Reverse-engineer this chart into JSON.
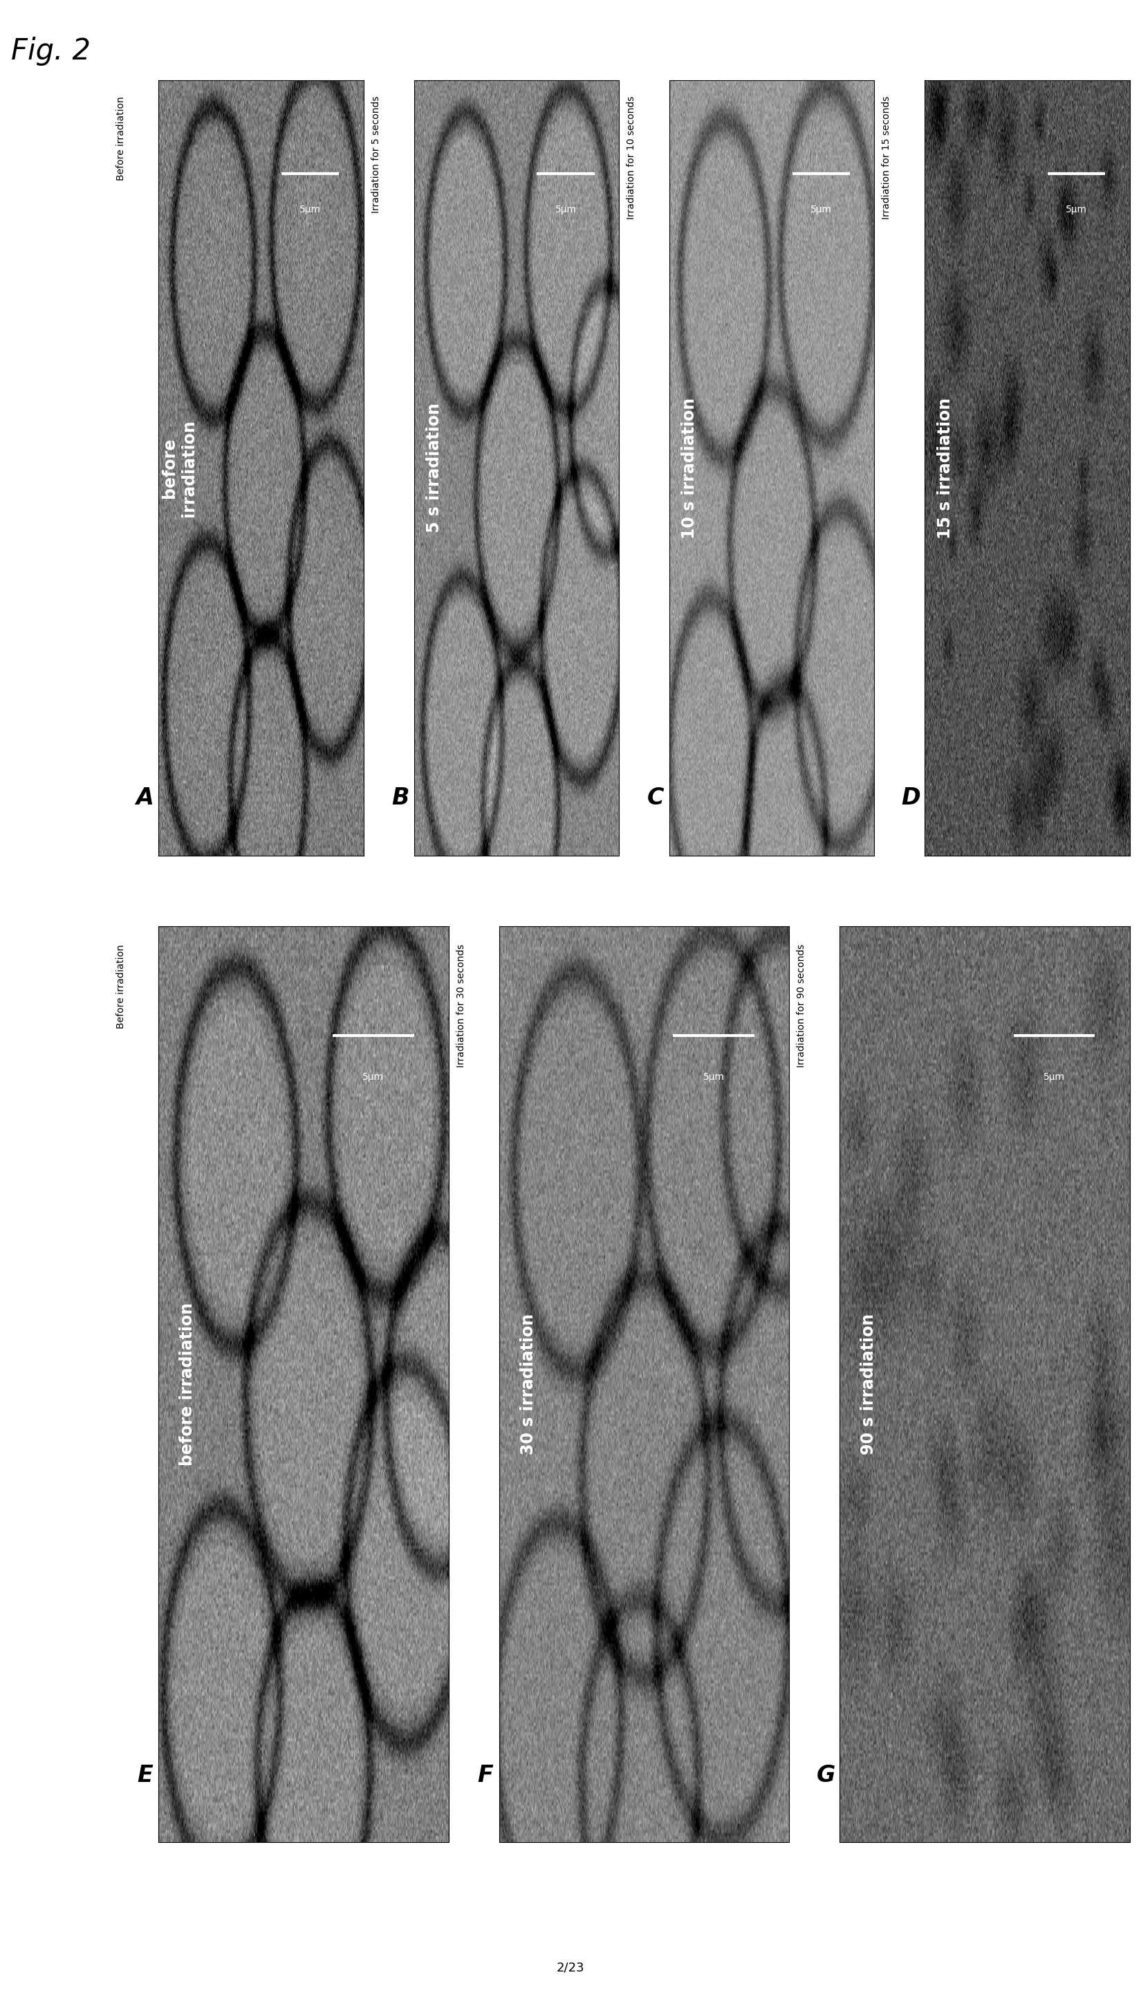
{
  "title": "Fig. 2",
  "page_label": "2/23",
  "background_color": "#ffffff",
  "panels": [
    {
      "label": "A",
      "sublabel": "Before irradiation",
      "image_text": "before\nirradiation",
      "image_text_rotation": 0,
      "scale_text": "5μm",
      "cell_type": "large_irregular",
      "noise_seed": 10,
      "bg_mean": 0.48,
      "bg_std": 0.07,
      "row": 0,
      "col": 0
    },
    {
      "label": "B",
      "sublabel": "Irradiation for 5 seconds",
      "image_text": "5 s irradiation",
      "image_text_rotation": 0,
      "scale_text": "5μm",
      "cell_type": "large_circles_b",
      "noise_seed": 20,
      "bg_mean": 0.52,
      "bg_std": 0.06,
      "row": 0,
      "col": 1
    },
    {
      "label": "C",
      "sublabel": "Irradiation for 10 seconds",
      "image_text": "10 s irradiation",
      "image_text_rotation": 0,
      "scale_text": "5μm",
      "cell_type": "partial_circles_c",
      "noise_seed": 30,
      "bg_mean": 0.55,
      "bg_std": 0.06,
      "row": 0,
      "col": 2
    },
    {
      "label": "D",
      "sublabel": "Irradiation for 15 seconds",
      "image_text": "15 s irradiation",
      "image_text_rotation": 0,
      "scale_text": "5μm",
      "cell_type": "granular_d",
      "noise_seed": 40,
      "bg_mean": 0.38,
      "bg_std": 0.08,
      "row": 0,
      "col": 3
    },
    {
      "label": "E",
      "sublabel": "Before irradiation",
      "image_text": "before irradiation",
      "image_text_rotation": 0,
      "scale_text": "5μm",
      "cell_type": "large_circles_e",
      "noise_seed": 50,
      "bg_mean": 0.5,
      "bg_std": 0.06,
      "row": 1,
      "col": 0
    },
    {
      "label": "F",
      "sublabel": "Irradiation for 30 seconds",
      "image_text": "30 s irradiation",
      "image_text_rotation": 0,
      "scale_text": "5μm",
      "cell_type": "wavy_f",
      "noise_seed": 60,
      "bg_mean": 0.5,
      "bg_std": 0.06,
      "row": 1,
      "col": 1
    },
    {
      "label": "G",
      "sublabel": "Irradiation for 90 seconds",
      "image_text": "90 s irradiation",
      "image_text_rotation": 0,
      "scale_text": "5μm",
      "cell_type": "granular_g",
      "noise_seed": 70,
      "bg_mean": 0.45,
      "bg_std": 0.07,
      "row": 1,
      "col": 2
    }
  ]
}
